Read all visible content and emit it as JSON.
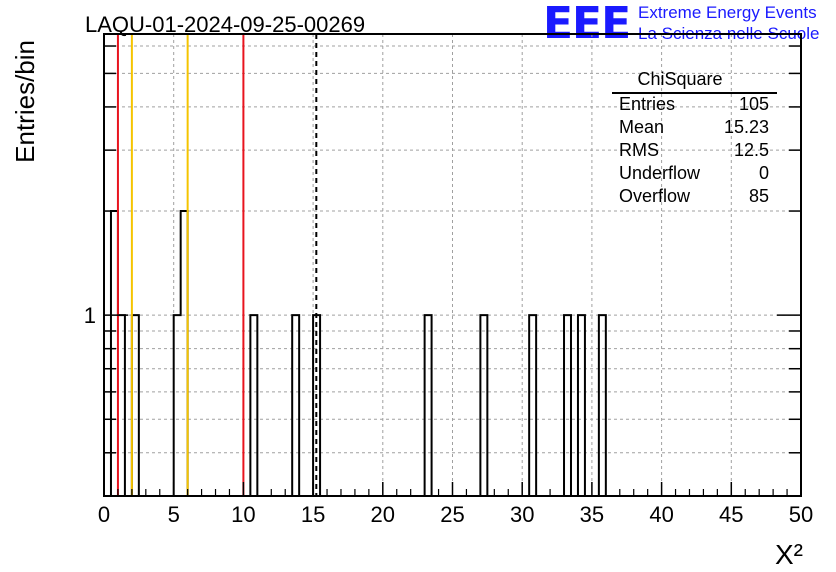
{
  "header": {
    "title": "LAQU-01-2024-09-25-00269",
    "logo_text": "EEE",
    "logo_line1": "Extreme Energy Events",
    "logo_line2": "La Scienza nelle Scuole",
    "logo_color": "#1a1aff"
  },
  "stats_box": {
    "title": "ChiSquare",
    "rows": [
      {
        "label": "Entries",
        "value": "105"
      },
      {
        "label": "Mean",
        "value": "15.23"
      },
      {
        "label": "RMS",
        "value": "12.5"
      },
      {
        "label": "Underflow",
        "value": "0"
      },
      {
        "label": "Overflow",
        "value": "85"
      }
    ]
  },
  "chart_data": {
    "type": "histogram",
    "title": "LAQU-01-2024-09-25-00269",
    "xlabel": "X²",
    "ylabel": "Entries/bin",
    "xlim": [
      0,
      50
    ],
    "ylim": [
      0.3,
      6.5
    ],
    "yscale": "log",
    "grid": true,
    "x_ticks": [
      0,
      5,
      10,
      15,
      20,
      25,
      30,
      35,
      40,
      45,
      50
    ],
    "y_tick_labels": [
      {
        "value": 1,
        "label": "1"
      }
    ],
    "bin_width": 0.5,
    "bins": [
      {
        "x": 0.0,
        "count": 0
      },
      {
        "x": 0.5,
        "count": 2
      },
      {
        "x": 1.0,
        "count": 1
      },
      {
        "x": 2.0,
        "count": 1
      },
      {
        "x": 5.0,
        "count": 1
      },
      {
        "x": 5.5,
        "count": 2
      },
      {
        "x": 10.5,
        "count": 1
      },
      {
        "x": 13.5,
        "count": 1
      },
      {
        "x": 15.0,
        "count": 1
      },
      {
        "x": 23.0,
        "count": 1
      },
      {
        "x": 27.0,
        "count": 1
      },
      {
        "x": 30.5,
        "count": 1
      },
      {
        "x": 33.0,
        "count": 1
      },
      {
        "x": 34.0,
        "count": 1
      },
      {
        "x": 35.5,
        "count": 1
      }
    ],
    "vertical_lines": [
      {
        "x": 1.0,
        "color": "#e8141e",
        "style": "solid"
      },
      {
        "x": 2.0,
        "color": "#f5c400",
        "style": "solid"
      },
      {
        "x": 6.0,
        "color": "#f5c400",
        "style": "solid"
      },
      {
        "x": 10.0,
        "color": "#e8141e",
        "style": "solid"
      },
      {
        "x": 15.23,
        "color": "#000000",
        "style": "dashed"
      }
    ]
  }
}
